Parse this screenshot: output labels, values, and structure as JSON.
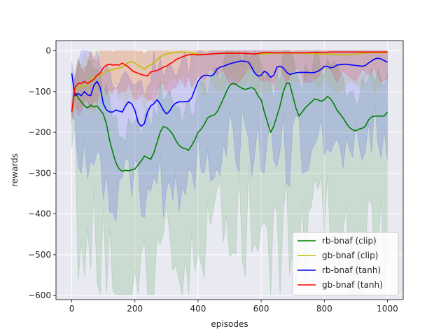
{
  "chart_data": {
    "type": "line",
    "xlabel": "episodes",
    "ylabel": "rewards",
    "xlim": [
      -50,
      1050
    ],
    "ylim": [
      -610,
      25
    ],
    "xticks": [
      0,
      200,
      400,
      600,
      800,
      1000
    ],
    "yticks": [
      -600,
      -500,
      -400,
      -300,
      -200,
      -100,
      0
    ],
    "grid": true,
    "legend_position": "lower-right",
    "background": "#e9e9f2",
    "series": [
      {
        "name": "rb-bnaf (clip)",
        "color": "#008000",
        "x": [
          0,
          10,
          20,
          30,
          40,
          50,
          60,
          70,
          80,
          90,
          100,
          110,
          120,
          130,
          140,
          150,
          160,
          170,
          180,
          190,
          200,
          210,
          220,
          230,
          240,
          250,
          260,
          270,
          280,
          290,
          300,
          310,
          320,
          330,
          340,
          350,
          360,
          370,
          380,
          390,
          400,
          410,
          420,
          430,
          440,
          450,
          460,
          470,
          480,
          490,
          500,
          510,
          520,
          530,
          540,
          550,
          560,
          570,
          580,
          590,
          600,
          610,
          620,
          630,
          640,
          650,
          660,
          670,
          680,
          690,
          700,
          710,
          720,
          730,
          740,
          750,
          760,
          770,
          780,
          790,
          800,
          810,
          820,
          830,
          840,
          850,
          860,
          870,
          880,
          890,
          900,
          910,
          920,
          930,
          940,
          950,
          960,
          970,
          980,
          990,
          1000
        ],
        "values": [
          -150,
          -100,
          -115,
          -125,
          -135,
          -140,
          -133,
          -138,
          -135,
          -145,
          -155,
          -180,
          -220,
          -250,
          -275,
          -290,
          -295,
          -293,
          -294,
          -292,
          -290,
          -280,
          -270,
          -258,
          -262,
          -266,
          -250,
          -225,
          -200,
          -186,
          -188,
          -195,
          -205,
          -220,
          -232,
          -238,
          -240,
          -244,
          -232,
          -218,
          -200,
          -192,
          -180,
          -165,
          -160,
          -158,
          -150,
          -135,
          -118,
          -100,
          -85,
          -80,
          -82,
          -88,
          -92,
          -95,
          -92,
          -90,
          -95,
          -110,
          -120,
          -150,
          -175,
          -200,
          -185,
          -160,
          -135,
          -100,
          -80,
          -80,
          -110,
          -140,
          -160,
          -150,
          -140,
          -132,
          -125,
          -118,
          -120,
          -124,
          -120,
          -112,
          -118,
          -130,
          -145,
          -155,
          -165,
          -178,
          -188,
          -194,
          -196,
          -192,
          -190,
          -185,
          -170,
          -162,
          -160,
          -160,
          -160,
          -160,
          -150
        ]
      },
      {
        "name": "gb-bnaf (clip)",
        "color": "#bfbf00",
        "x": [
          0,
          10,
          20,
          30,
          40,
          50,
          60,
          70,
          80,
          90,
          100,
          110,
          120,
          130,
          140,
          150,
          160,
          170,
          180,
          190,
          200,
          210,
          220,
          230,
          240,
          250,
          260,
          270,
          280,
          290,
          300,
          310,
          320,
          330,
          340,
          350,
          360,
          370,
          380,
          390,
          400,
          420,
          440,
          460,
          480,
          500,
          520,
          540,
          560,
          580,
          600,
          620,
          640,
          660,
          680,
          700,
          720,
          740,
          760,
          780,
          800,
          820,
          840,
          860,
          880,
          900,
          920,
          940,
          960,
          980,
          1000
        ],
        "values": [
          -150,
          -100,
          -90,
          -85,
          -88,
          -82,
          -70,
          -65,
          -62,
          -60,
          -55,
          -50,
          -48,
          -46,
          -44,
          -42,
          -40,
          -35,
          -28,
          -26,
          -30,
          -35,
          -40,
          -45,
          -38,
          -35,
          -30,
          -22,
          -15,
          -10,
          -8,
          -6,
          -5,
          -4,
          -3,
          -3,
          -4,
          -5,
          -6,
          -7,
          -8,
          -9,
          -8,
          -7,
          -6,
          -6,
          -6,
          -6,
          -7,
          -8,
          -8,
          -7,
          -6,
          -6,
          -6,
          -6,
          -6,
          -6,
          -7,
          -8,
          -8,
          -8,
          -9,
          -10,
          -10,
          -8,
          -6,
          -5,
          -5,
          -5,
          -5
        ]
      },
      {
        "name": "rb-bnaf (tanh)",
        "color": "#0000ff",
        "x": [
          0,
          10,
          20,
          30,
          40,
          50,
          60,
          70,
          80,
          90,
          100,
          110,
          120,
          130,
          140,
          150,
          160,
          170,
          180,
          190,
          200,
          210,
          220,
          230,
          240,
          250,
          260,
          270,
          280,
          290,
          300,
          310,
          320,
          330,
          340,
          350,
          360,
          370,
          380,
          390,
          400,
          410,
          420,
          430,
          440,
          450,
          460,
          470,
          480,
          490,
          500,
          510,
          520,
          530,
          540,
          550,
          560,
          570,
          580,
          590,
          600,
          610,
          620,
          630,
          640,
          650,
          660,
          670,
          680,
          690,
          700,
          710,
          720,
          730,
          740,
          750,
          760,
          770,
          780,
          790,
          800,
          810,
          820,
          830,
          840,
          850,
          860,
          870,
          880,
          890,
          900,
          910,
          920,
          930,
          940,
          950,
          960,
          970,
          980,
          990,
          1000
        ],
        "values": [
          -55,
          -110,
          -105,
          -110,
          -100,
          -108,
          -110,
          -85,
          -75,
          -90,
          -130,
          -145,
          -150,
          -150,
          -145,
          -148,
          -150,
          -135,
          -125,
          -130,
          -145,
          -175,
          -185,
          -178,
          -150,
          -135,
          -130,
          -120,
          -130,
          -145,
          -155,
          -148,
          -135,
          -128,
          -125,
          -125,
          -125,
          -124,
          -115,
          -95,
          -75,
          -65,
          -60,
          -60,
          -62,
          -58,
          -45,
          -40,
          -38,
          -35,
          -32,
          -30,
          -28,
          -26,
          -25,
          -26,
          -28,
          -40,
          -55,
          -62,
          -60,
          -50,
          -55,
          -65,
          -60,
          -40,
          -38,
          -42,
          -52,
          -58,
          -56,
          -54,
          -53,
          -53,
          -53,
          -53,
          -54,
          -53,
          -50,
          -45,
          -38,
          -38,
          -42,
          -40,
          -35,
          -34,
          -33,
          -33,
          -34,
          -35,
          -36,
          -37,
          -38,
          -36,
          -30,
          -25,
          -20,
          -18,
          -20,
          -24,
          -28
        ]
      },
      {
        "name": "gb-bnaf (tanh)",
        "color": "#ff0000",
        "x": [
          0,
          10,
          20,
          30,
          40,
          50,
          60,
          70,
          80,
          90,
          100,
          110,
          120,
          130,
          140,
          150,
          160,
          170,
          180,
          190,
          200,
          210,
          220,
          230,
          240,
          250,
          260,
          270,
          280,
          290,
          300,
          310,
          320,
          330,
          340,
          350,
          360,
          370,
          380,
          400,
          420,
          440,
          460,
          480,
          500,
          520,
          540,
          560,
          580,
          600,
          620,
          640,
          660,
          680,
          700,
          720,
          740,
          760,
          780,
          800,
          820,
          840,
          860,
          880,
          900,
          920,
          940,
          960,
          980,
          1000
        ],
        "values": [
          -150,
          -90,
          -80,
          -80,
          -75,
          -80,
          -75,
          -70,
          -60,
          -55,
          -42,
          -35,
          -33,
          -35,
          -34,
          -35,
          -30,
          -35,
          -40,
          -48,
          -52,
          -55,
          -58,
          -60,
          -62,
          -52,
          -50,
          -48,
          -45,
          -40,
          -38,
          -32,
          -28,
          -22,
          -18,
          -15,
          -12,
          -10,
          -9,
          -10,
          -9,
          -8,
          -7,
          -6,
          -6,
          -6,
          -6,
          -7,
          -8,
          -5,
          -4,
          -5,
          -5,
          -5,
          -5,
          -5,
          -5,
          -4,
          -4,
          -4,
          -3,
          -3,
          -3,
          -3,
          -3,
          -3,
          -3,
          -3,
          -3,
          -3
        ]
      }
    ]
  }
}
